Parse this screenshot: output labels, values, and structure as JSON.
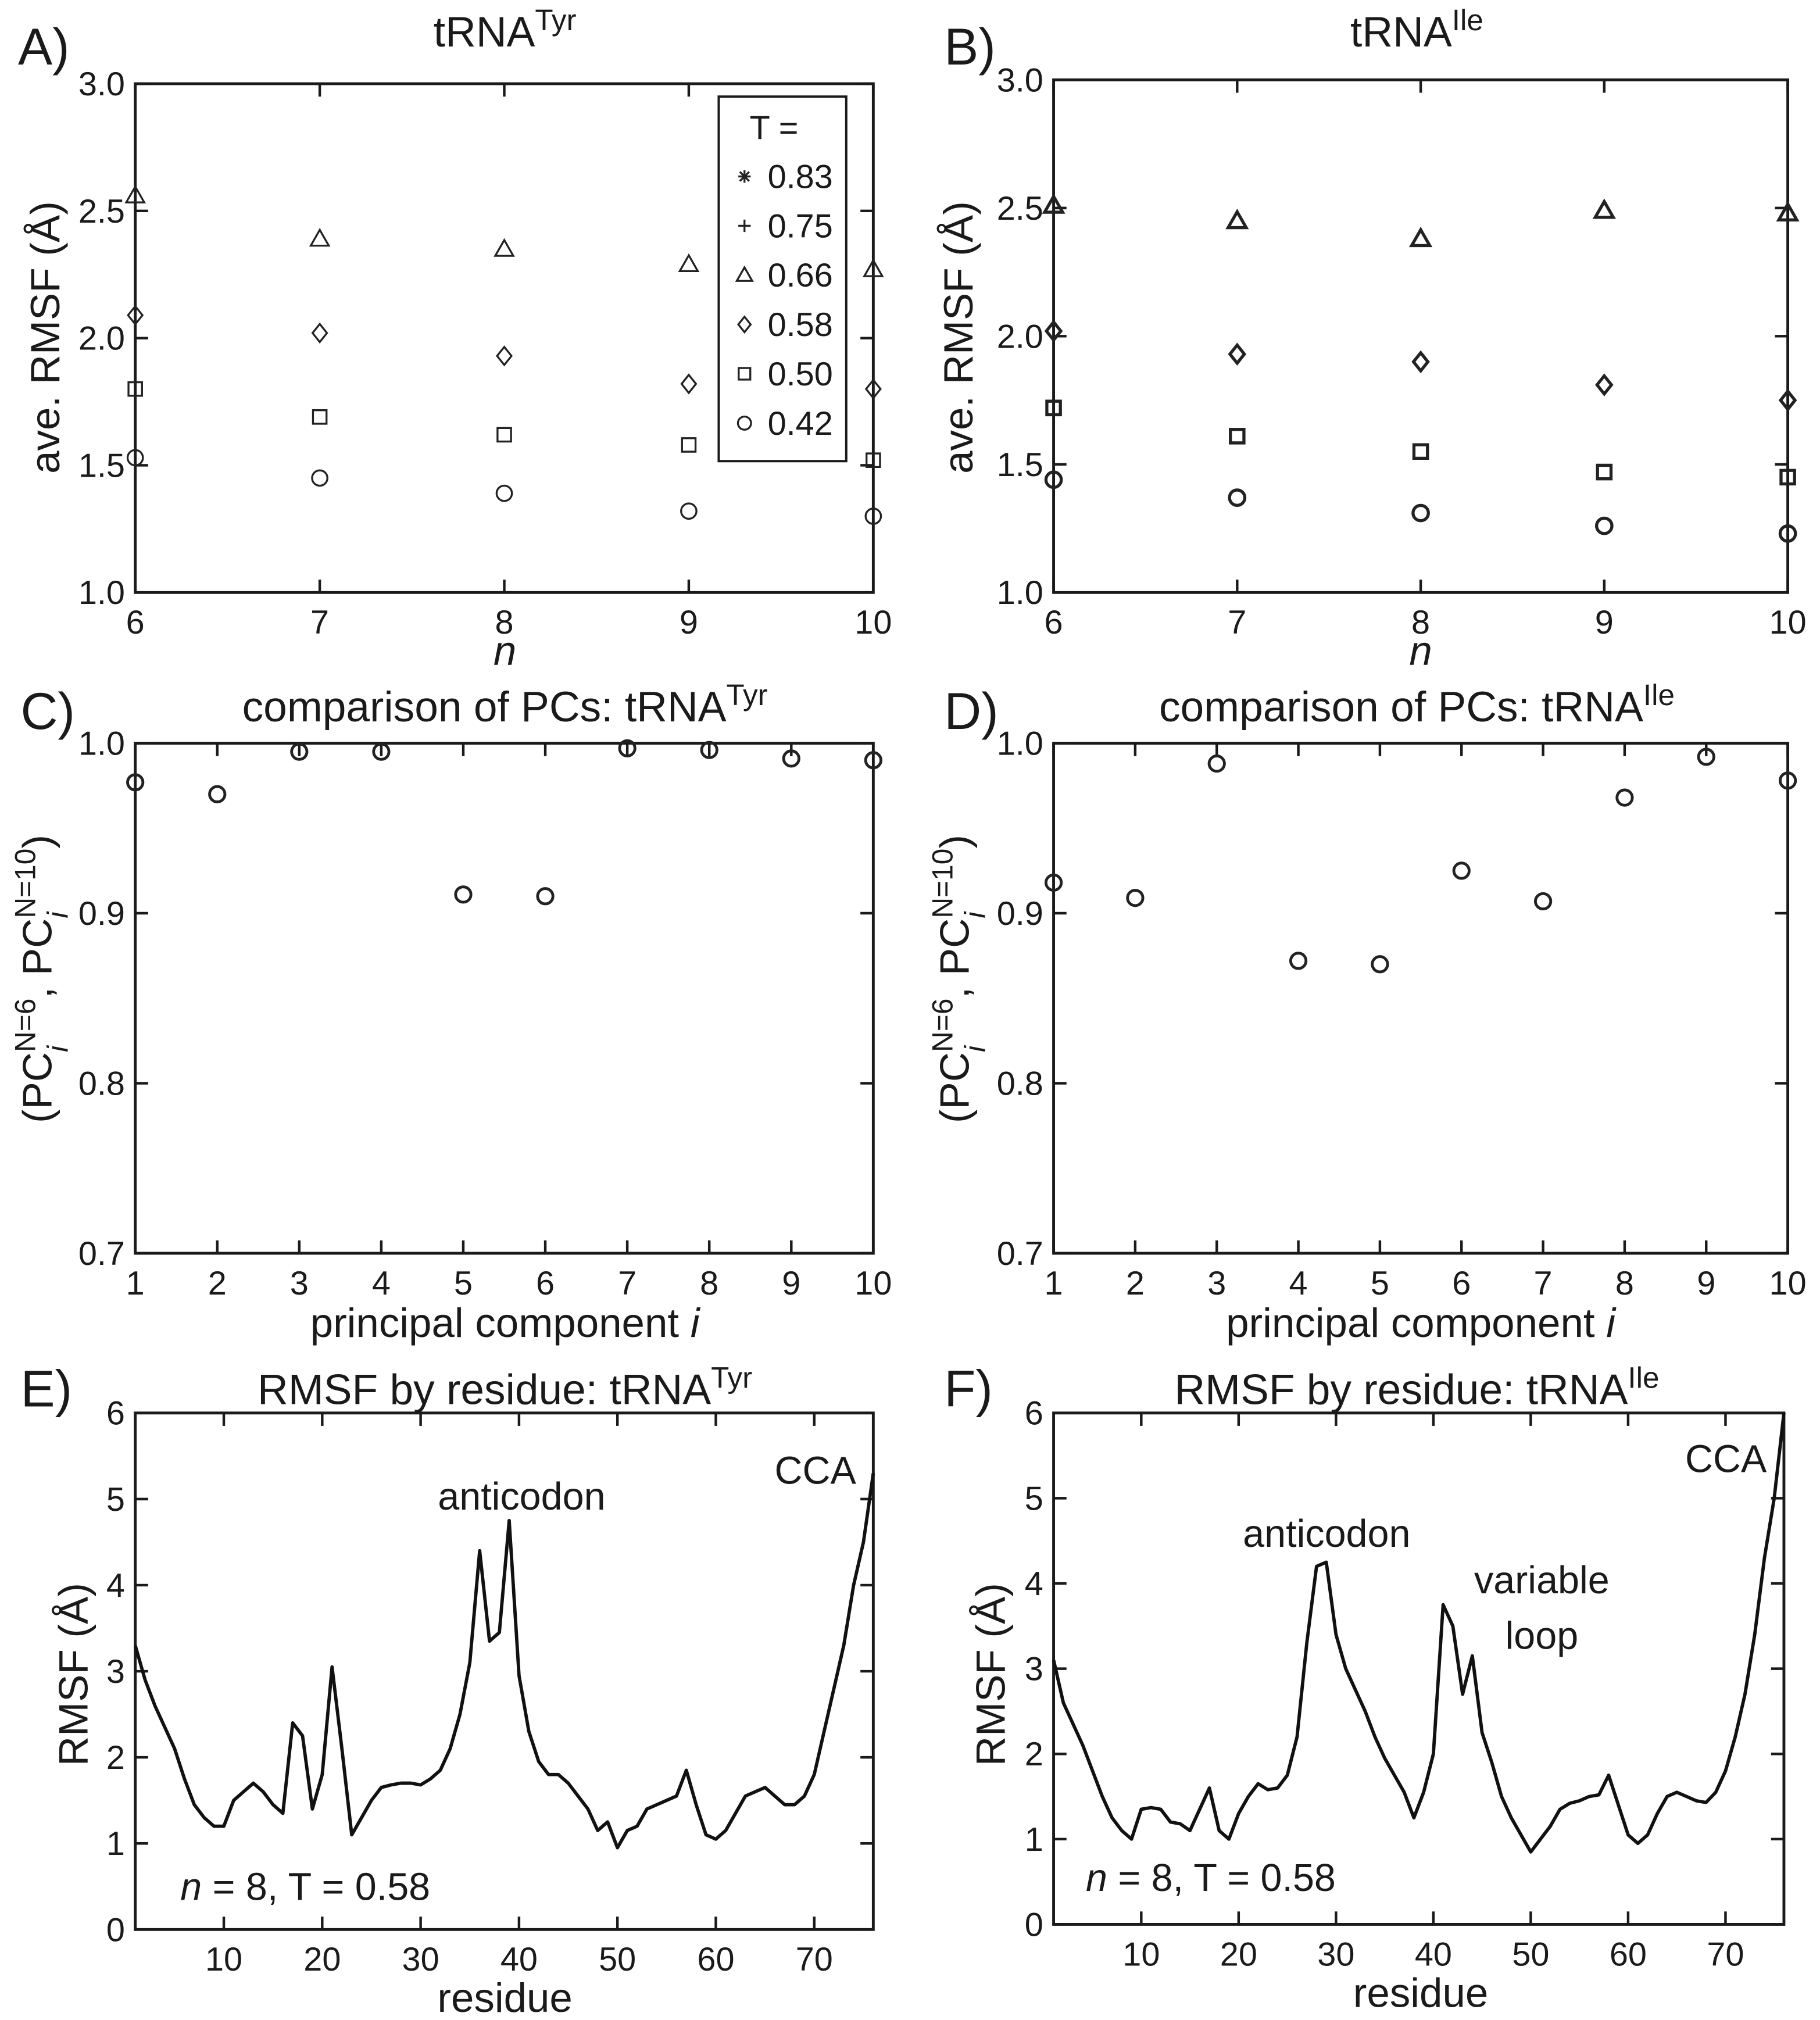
{
  "chart_data": [
    {
      "panel": "A)",
      "type": "scatter",
      "title": [
        {
          "text": "tRNA"
        },
        {
          "text": "Tyr",
          "sup": true
        }
      ],
      "xlabel": [
        {
          "text": "n",
          "italic": true
        }
      ],
      "ylabel": [
        {
          "text": "ave. RMSF (Å)"
        }
      ],
      "x": [
        6,
        7,
        8,
        9,
        10
      ],
      "xlim": [
        6,
        10
      ],
      "xticks": [
        6,
        7,
        8,
        9,
        10
      ],
      "ylim": [
        1,
        3
      ],
      "yticks": [
        {
          "value": 1,
          "label": "1.0"
        },
        1.5,
        {
          "value": 2,
          "label": "2.0"
        },
        2.5,
        {
          "value": 3,
          "label": "3.0"
        }
      ],
      "legend": {
        "title": "T =",
        "position": "upper right"
      },
      "series": [
        {
          "name": "0.83",
          "marker": "asterisk",
          "color": "#222222",
          "values": [
            null,
            null,
            null,
            null,
            null
          ]
        },
        {
          "name": "0.75",
          "marker": "plus",
          "color": "#222222",
          "values": [
            null,
            null,
            null,
            null,
            null
          ]
        },
        {
          "name": "0.66",
          "marker": "triangle",
          "color": "#222222",
          "values": [
            2.56,
            2.39,
            2.35,
            2.29,
            2.27
          ]
        },
        {
          "name": "0.58",
          "marker": "diamond",
          "color": "#222222",
          "values": [
            2.09,
            2.02,
            1.93,
            1.82,
            1.8
          ]
        },
        {
          "name": "0.50",
          "marker": "square",
          "color": "#222222",
          "values": [
            1.8,
            1.69,
            1.62,
            1.58,
            1.52
          ]
        },
        {
          "name": "0.42",
          "marker": "circle",
          "color": "#222222",
          "values": [
            1.53,
            1.45,
            1.39,
            1.32,
            1.3
          ]
        }
      ]
    },
    {
      "panel": "B)",
      "type": "scatter",
      "title": [
        {
          "text": "tRNA"
        },
        {
          "text": "Ile",
          "sup": true
        }
      ],
      "xlabel": [
        {
          "text": "n",
          "italic": true
        }
      ],
      "ylabel": [
        {
          "text": "ave. RMSF (Å)"
        }
      ],
      "x": [
        6,
        7,
        8,
        9,
        10
      ],
      "xlim": [
        6,
        10
      ],
      "xticks": [
        6,
        7,
        8,
        9,
        10
      ],
      "ylim": [
        1,
        3
      ],
      "yticks": [
        {
          "value": 1,
          "label": "1.0"
        },
        1.5,
        {
          "value": 2,
          "label": "2.0"
        },
        2.5,
        {
          "value": 3,
          "label": "3.0"
        }
      ],
      "series": [
        {
          "marker": "triangle",
          "color": "#222222",
          "values": [
            2.51,
            2.45,
            2.38,
            2.49,
            2.48
          ]
        },
        {
          "marker": "diamond",
          "color": "#222222",
          "values": [
            2.02,
            1.93,
            1.9,
            1.81,
            1.75
          ]
        },
        {
          "marker": "square",
          "color": "#222222",
          "values": [
            1.72,
            1.61,
            1.55,
            1.47,
            1.45
          ]
        },
        {
          "marker": "circle",
          "color": "#222222",
          "values": [
            1.44,
            1.37,
            1.31,
            1.26,
            1.23
          ]
        }
      ]
    },
    {
      "panel": "C)",
      "type": "scatter",
      "title": [
        {
          "text": "comparison of PCs: tRNA"
        },
        {
          "text": "Tyr",
          "sup": true
        }
      ],
      "xlabel": [
        {
          "text": "principal component "
        },
        {
          "text": "i",
          "italic": true
        }
      ],
      "ylabel": [
        {
          "text": "(PC"
        },
        {
          "text": "i",
          "italic": true,
          "sub": true
        },
        {
          "text": "N=6",
          "sup": true
        },
        {
          "text": ", PC"
        },
        {
          "text": "i",
          "italic": true,
          "sub": true
        },
        {
          "text": "N=10",
          "sup": true
        },
        {
          "text": ")"
        }
      ],
      "x": [
        1,
        2,
        3,
        4,
        5,
        6,
        7,
        8,
        9,
        10
      ],
      "xlim": [
        1,
        10
      ],
      "xticks": [
        1,
        2,
        3,
        4,
        5,
        6,
        7,
        8,
        9,
        10
      ],
      "ylim": [
        0.7,
        1.0
      ],
      "yticks": [
        0.7,
        0.8,
        0.9,
        {
          "value": 1.0,
          "label": "1.0"
        }
      ],
      "series": [
        {
          "marker": "circle",
          "color": "#222222",
          "values": [
            0.977,
            0.97,
            0.995,
            0.995,
            0.911,
            0.91,
            0.997,
            0.996,
            0.991,
            0.99
          ]
        }
      ]
    },
    {
      "panel": "D)",
      "type": "scatter",
      "title": [
        {
          "text": "comparison of PCs: tRNA"
        },
        {
          "text": "Ile",
          "sup": true
        }
      ],
      "xlabel": [
        {
          "text": "principal component "
        },
        {
          "text": "i",
          "italic": true
        }
      ],
      "ylabel": [
        {
          "text": "(PC"
        },
        {
          "text": "i",
          "italic": true,
          "sub": true
        },
        {
          "text": "N=6",
          "sup": true
        },
        {
          "text": ", PC"
        },
        {
          "text": "i",
          "italic": true,
          "sub": true
        },
        {
          "text": "N=10",
          "sup": true
        },
        {
          "text": ")"
        }
      ],
      "x": [
        1,
        2,
        3,
        4,
        5,
        6,
        7,
        8,
        9,
        10
      ],
      "xlim": [
        1,
        10
      ],
      "xticks": [
        1,
        2,
        3,
        4,
        5,
        6,
        7,
        8,
        9,
        10
      ],
      "ylim": [
        0.7,
        1.0
      ],
      "yticks": [
        0.7,
        0.8,
        0.9,
        {
          "value": 1.0,
          "label": "1.0"
        }
      ],
      "series": [
        {
          "marker": "circle",
          "color": "#222222",
          "values": [
            0.918,
            0.909,
            0.988,
            0.872,
            0.87,
            0.925,
            0.907,
            0.968,
            0.992,
            0.978
          ]
        }
      ]
    },
    {
      "panel": "E)",
      "type": "line",
      "title": [
        {
          "text": "RMSF by residue: tRNA"
        },
        {
          "text": "Tyr",
          "sup": true
        }
      ],
      "xlabel": [
        {
          "text": "residue"
        }
      ],
      "ylabel": [
        {
          "text": "RMSF (Å)"
        }
      ],
      "annotations": [
        [
          {
            "text": "anticodon"
          }
        ],
        [
          {
            "text": "CCA"
          }
        ],
        [
          {
            "text": "n",
            "italic": true
          },
          {
            "text": " = 8, T = 0.58"
          }
        ]
      ],
      "x": [
        1,
        2,
        3,
        4,
        5,
        6,
        7,
        8,
        9,
        10,
        11,
        12,
        13,
        14,
        15,
        16,
        17,
        18,
        19,
        20,
        21,
        22,
        23,
        24,
        25,
        26,
        27,
        28,
        29,
        30,
        31,
        32,
        33,
        34,
        35,
        36,
        37,
        38,
        39,
        40,
        41,
        42,
        43,
        44,
        45,
        46,
        47,
        48,
        49,
        50,
        51,
        52,
        53,
        54,
        55,
        56,
        57,
        58,
        59,
        60,
        61,
        62,
        63,
        64,
        65,
        66,
        67,
        68,
        69,
        70,
        71,
        72,
        73,
        74,
        75,
        76
      ],
      "xlim": [
        1,
        76
      ],
      "xticks": [
        10,
        20,
        30,
        40,
        50,
        60,
        70
      ],
      "ylim": [
        0,
        6
      ],
      "yticks": [
        0,
        1,
        2,
        3,
        4,
        5,
        6
      ],
      "series": [
        {
          "color": "#111111",
          "values": [
            3.3,
            2.9,
            2.6,
            2.35,
            2.1,
            1.75,
            1.45,
            1.3,
            1.2,
            1.2,
            1.5,
            1.6,
            1.7,
            1.6,
            1.45,
            1.35,
            2.4,
            2.25,
            1.4,
            1.8,
            3.05,
            2.1,
            1.1,
            1.3,
            1.5,
            1.65,
            1.68,
            1.7,
            1.7,
            1.68,
            1.75,
            1.85,
            2.1,
            2.5,
            3.1,
            4.4,
            3.35,
            3.45,
            4.75,
            2.95,
            2.3,
            1.95,
            1.8,
            1.8,
            1.7,
            1.55,
            1.4,
            1.15,
            1.25,
            0.95,
            1.15,
            1.2,
            1.4,
            1.45,
            1.5,
            1.55,
            1.85,
            1.45,
            1.1,
            1.05,
            1.15,
            1.35,
            1.55,
            1.6,
            1.65,
            1.55,
            1.45,
            1.45,
            1.55,
            1.8,
            2.3,
            2.8,
            3.3,
            4.0,
            4.5,
            5.3
          ]
        }
      ]
    },
    {
      "panel": "F)",
      "type": "line",
      "title": [
        {
          "text": "RMSF by residue: tRNA"
        },
        {
          "text": "Ile",
          "sup": true
        }
      ],
      "xlabel": [
        {
          "text": "residue"
        }
      ],
      "ylabel": [
        {
          "text": "RMSF (Å)"
        }
      ],
      "annotations": [
        [
          {
            "text": "anticodon"
          }
        ],
        [
          {
            "text": "variable"
          }
        ],
        [
          {
            "text": "loop"
          }
        ],
        [
          {
            "text": "CCA"
          }
        ],
        [
          {
            "text": "n",
            "italic": true
          },
          {
            "text": " = 8, T = 0.58"
          }
        ]
      ],
      "x": [
        1,
        2,
        3,
        4,
        5,
        6,
        7,
        8,
        9,
        10,
        11,
        12,
        13,
        14,
        15,
        16,
        17,
        18,
        19,
        20,
        21,
        22,
        23,
        24,
        25,
        26,
        27,
        28,
        29,
        30,
        31,
        32,
        33,
        34,
        35,
        36,
        37,
        38,
        39,
        40,
        41,
        42,
        43,
        44,
        45,
        46,
        47,
        48,
        49,
        50,
        51,
        52,
        53,
        54,
        55,
        56,
        57,
        58,
        59,
        60,
        61,
        62,
        63,
        64,
        65,
        66,
        67,
        68,
        69,
        70,
        71,
        72,
        73,
        74,
        75,
        76
      ],
      "xlim": [
        1,
        76
      ],
      "xticks": [
        10,
        20,
        30,
        40,
        50,
        60,
        70
      ],
      "ylim": [
        0,
        6
      ],
      "yticks": [
        0,
        1,
        2,
        3,
        4,
        5,
        6
      ],
      "series": [
        {
          "color": "#111111",
          "values": [
            3.1,
            2.6,
            2.35,
            2.1,
            1.8,
            1.5,
            1.25,
            1.1,
            1.0,
            1.35,
            1.37,
            1.35,
            1.2,
            1.18,
            1.1,
            1.35,
            1.6,
            1.1,
            1.0,
            1.3,
            1.5,
            1.65,
            1.58,
            1.6,
            1.75,
            2.2,
            3.3,
            4.2,
            4.25,
            3.4,
            3.0,
            2.75,
            2.5,
            2.2,
            1.95,
            1.75,
            1.55,
            1.25,
            1.55,
            2.0,
            3.75,
            3.5,
            2.7,
            3.15,
            2.25,
            1.9,
            1.5,
            1.25,
            1.05,
            0.85,
            1.0,
            1.15,
            1.35,
            1.42,
            1.45,
            1.5,
            1.52,
            1.75,
            1.4,
            1.05,
            0.95,
            1.05,
            1.3,
            1.5,
            1.55,
            1.5,
            1.45,
            1.43,
            1.55,
            1.8,
            2.2,
            2.7,
            3.4,
            4.3,
            5.0,
            6.0
          ]
        }
      ]
    }
  ]
}
